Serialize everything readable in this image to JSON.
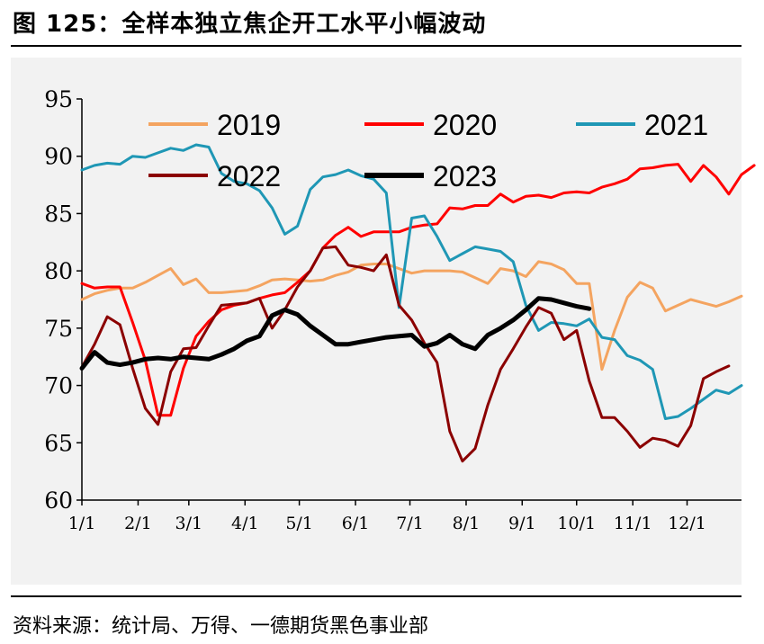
{
  "header": {
    "title": "图 125：全样本独立焦企开工水平小幅波动"
  },
  "footer": {
    "source": "资料来源：统计局、万得、一德期货黑色事业部"
  },
  "chart_data": {
    "type": "line",
    "title": "全样本独立焦企开工水平小幅波动",
    "xlabel": "",
    "ylabel": "",
    "xlim": [
      0,
      52
    ],
    "ylim": [
      60,
      95
    ],
    "yticks": [
      60,
      65,
      70,
      75,
      80,
      85,
      90,
      95
    ],
    "x_ticks": [
      {
        "label": "1/1",
        "x": 0
      },
      {
        "label": "2/1",
        "x": 4.43
      },
      {
        "label": "3/1",
        "x": 8.43
      },
      {
        "label": "4/1",
        "x": 12.86
      },
      {
        "label": "5/1",
        "x": 17.14
      },
      {
        "label": "6/1",
        "x": 21.57
      },
      {
        "label": "7/1",
        "x": 25.86
      },
      {
        "label": "8/1",
        "x": 30.29
      },
      {
        "label": "9/1",
        "x": 34.71
      },
      {
        "label": "10/1",
        "x": 39
      },
      {
        "label": "11/1",
        "x": 43.43
      },
      {
        "label": "12/1",
        "x": 47.71
      }
    ],
    "legend": {
      "position": "top",
      "columns": 3
    },
    "series": [
      {
        "name": "2019",
        "color": "#f4a460",
        "width": 3,
        "values": [
          77.5,
          78,
          78.3,
          78.5,
          78.5,
          79,
          79.6,
          80.2,
          78.8,
          79.3,
          78.1,
          78.1,
          78.2,
          78.3,
          78.7,
          79.2,
          79.3,
          79.2,
          79.1,
          79.2,
          79.6,
          79.9,
          80.5,
          80.6,
          80.6,
          80.2,
          79.8,
          80.0,
          80.0,
          80.0,
          79.9,
          79.4,
          78.9,
          80.2,
          80.0,
          79.5,
          80.8,
          80.6,
          80.1,
          78.9,
          78.9,
          71.4,
          74.8,
          77.7,
          79.0,
          78.5,
          76.5,
          77.0,
          77.5,
          77.2,
          76.9,
          77.3,
          77.8
        ]
      },
      {
        "name": "2020",
        "color": "#ff0000",
        "width": 3,
        "values": [
          78.9,
          78.5,
          78.6,
          78.6,
          75.5,
          72.2,
          67.4,
          67.4,
          71.5,
          74.3,
          75.6,
          76.6,
          77.0,
          77.2,
          77.6,
          77.9,
          78.1,
          79.0,
          80.0,
          82.0,
          83.1,
          83.8,
          83.0,
          83.4,
          83.4,
          83.4,
          83.8,
          84.0,
          84.1,
          85.5,
          85.4,
          85.7,
          85.7,
          86.7,
          86.0,
          86.5,
          86.6,
          86.4,
          86.8,
          86.9,
          86.8,
          87.3,
          87.6,
          88.0,
          88.9,
          89.0,
          89.2,
          89.3,
          87.8,
          89.2,
          88.2,
          86.7,
          88.4,
          89.2
        ]
      },
      {
        "name": "2021",
        "color": "#1f97b5",
        "width": 3,
        "values": [
          88.8,
          89.2,
          89.4,
          89.3,
          90.0,
          89.9,
          90.3,
          90.7,
          90.5,
          91.0,
          90.8,
          88.5,
          87.8,
          87.6,
          87.0,
          85.5,
          83.2,
          83.9,
          87.1,
          88.2,
          88.4,
          88.8,
          88.3,
          88.0,
          86.8,
          76.8,
          84.6,
          84.8,
          83.0,
          80.9,
          81.5,
          82.1,
          81.9,
          81.7,
          80.8,
          77.0,
          74.8,
          75.5,
          75.4,
          75.2,
          75.8,
          74.2,
          74.0,
          72.6,
          72.2,
          71.4,
          67.1,
          67.3,
          68.0,
          68.8,
          69.6,
          69.3,
          70.0
        ]
      },
      {
        "name": "2022",
        "color": "#8b0000",
        "width": 3,
        "values": [
          71.6,
          73.6,
          76.0,
          75.3,
          71.5,
          68.0,
          66.6,
          71.2,
          73.2,
          73.3,
          75.2,
          77.0,
          77.1,
          77.2,
          77.6,
          75.0,
          76.6,
          78.6,
          80.0,
          82.0,
          82.1,
          80.5,
          80.3,
          80.0,
          81.4,
          77.0,
          75.7,
          73.7,
          72.0,
          66.0,
          63.4,
          64.5,
          68.3,
          71.4,
          73.2,
          75.1,
          76.8,
          76.3,
          74.0,
          74.8,
          70.4,
          67.2,
          67.2,
          66.0,
          64.6,
          65.4,
          65.2,
          64.7,
          66.5,
          70.6,
          71.2,
          71.7
        ]
      },
      {
        "name": "2023",
        "color": "#000000",
        "width": 5,
        "values": [
          71.5,
          72.9,
          72.0,
          71.8,
          72.0,
          72.3,
          72.4,
          72.3,
          72.5,
          72.4,
          72.3,
          72.7,
          73.2,
          73.9,
          74.3,
          76.1,
          76.6,
          76.2,
          75.2,
          74.4,
          73.6,
          73.6,
          73.8,
          74.0,
          74.2,
          74.3,
          74.4,
          73.4,
          73.7,
          74.4,
          73.6,
          73.2,
          74.4,
          75.0,
          75.7,
          76.6,
          77.6,
          77.5,
          77.2,
          76.9,
          76.7
        ]
      }
    ]
  }
}
